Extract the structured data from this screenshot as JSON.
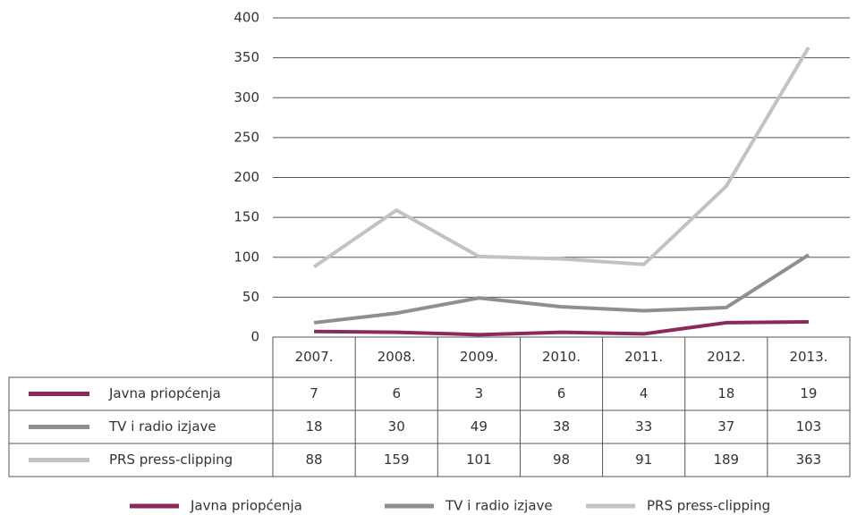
{
  "chart_data": {
    "type": "line",
    "categories": [
      "2007.",
      "2008.",
      "2009.",
      "2010.",
      "2011.",
      "2012.",
      "2013."
    ],
    "series": [
      {
        "name": "Javna priopćenja",
        "color": "#8b2a5a",
        "values": [
          7,
          6,
          3,
          6,
          4,
          18,
          19
        ]
      },
      {
        "name": "TV i radio izjave",
        "color": "#8e8e93",
        "values": [
          18,
          30,
          49,
          38,
          33,
          37,
          103
        ]
      },
      {
        "name": "PRS press-clipping",
        "color": "#c2c2c4",
        "values": [
          88,
          159,
          101,
          98,
          91,
          189,
          363
        ]
      }
    ],
    "ylim": [
      0,
      400
    ],
    "yticks": [
      0,
      50,
      100,
      150,
      200,
      250,
      300,
      350,
      400
    ],
    "grid": true
  }
}
